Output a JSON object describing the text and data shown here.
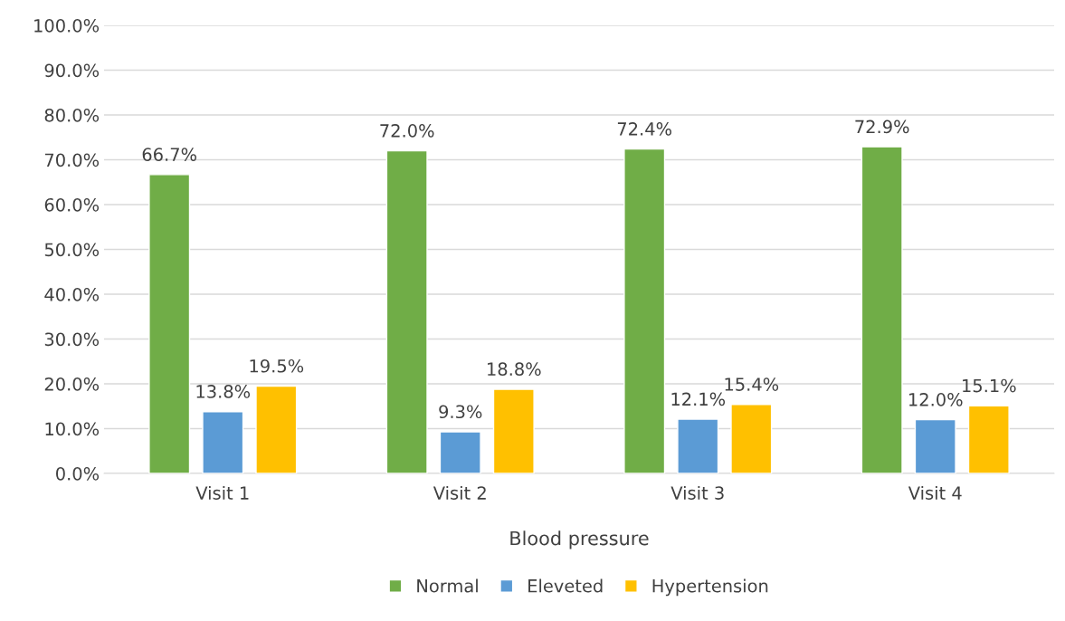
{
  "chart_data": {
    "type": "bar",
    "xlabel": "Blood pressure",
    "categories": [
      "Visit 1",
      "Visit 2",
      "Visit 3",
      "Visit 4"
    ],
    "series": [
      {
        "name": "Normal",
        "color": "#70ad47",
        "values": [
          66.7,
          72.0,
          72.4,
          72.9
        ],
        "value_labels": [
          "66.7%",
          "72.0%",
          "72.4%",
          "72.9%"
        ]
      },
      {
        "name": "Eleveted",
        "color": "#5b9bd5",
        "values": [
          13.8,
          9.3,
          12.1,
          12.0
        ],
        "value_labels": [
          "13.8%",
          "9.3%",
          "12.1%",
          "12.0%"
        ]
      },
      {
        "name": "Hypertension",
        "color": "#ffc000",
        "values": [
          19.5,
          18.8,
          15.4,
          15.1
        ],
        "value_labels": [
          "19.5%",
          "18.8%",
          "15.4%",
          "15.1%"
        ]
      }
    ],
    "ylim": [
      0,
      100
    ],
    "yticks": [
      {
        "value": 0,
        "label": "0.0%"
      },
      {
        "value": 10,
        "label": "10.0%"
      },
      {
        "value": 20,
        "label": "20.0%"
      },
      {
        "value": 30,
        "label": "30.0%"
      },
      {
        "value": 40,
        "label": "40.0%"
      },
      {
        "value": 50,
        "label": "50.0%"
      },
      {
        "value": 60,
        "label": "60.0%"
      },
      {
        "value": 70,
        "label": "70.0%"
      },
      {
        "value": 80,
        "label": "80.0%"
      },
      {
        "value": 90,
        "label": "90.0%"
      },
      {
        "value": 100,
        "label": "100.0%"
      }
    ],
    "grid": "y",
    "legend": "bottom"
  }
}
